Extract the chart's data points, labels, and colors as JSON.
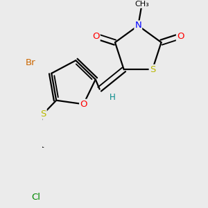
{
  "bg_color": "#ebebeb",
  "bond_color": "#000000",
  "bond_width": 1.6,
  "atom_colors": {
    "O": "#ff0000",
    "N": "#0000ff",
    "S": "#b8b800",
    "Br": "#cc6600",
    "Cl": "#008800",
    "H": "#008888",
    "C": "#000000"
  },
  "fs": 9.5
}
